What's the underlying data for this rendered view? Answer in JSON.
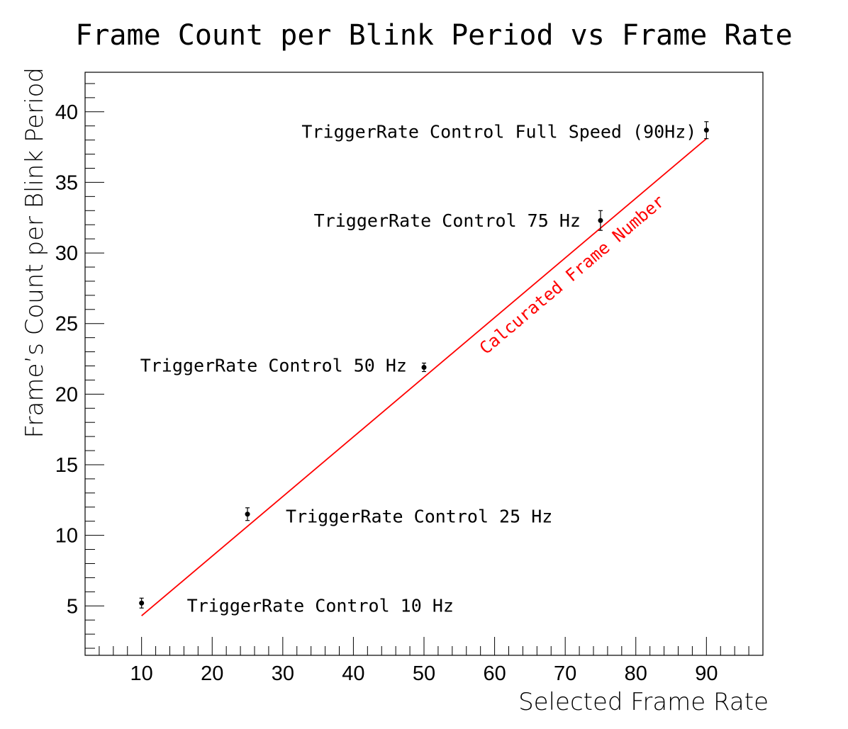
{
  "chart_data": {
    "type": "scatter",
    "title": "Frame Count per Blink Period vs Frame Rate",
    "xlabel": "Selected Frame Rate",
    "ylabel": "Frame’s Count per Blink Period",
    "xlim": [
      2,
      98
    ],
    "ylim": [
      1.5,
      42.8
    ],
    "x_ticks": [
      10,
      20,
      30,
      40,
      50,
      60,
      70,
      80,
      90
    ],
    "y_ticks": [
      5,
      10,
      15,
      20,
      25,
      30,
      35,
      40
    ],
    "grid": false,
    "points": [
      {
        "x": 10,
        "y": 5.2,
        "err": 0.35,
        "label": "TriggerRate Control 10 Hz"
      },
      {
        "x": 25,
        "y": 11.5,
        "err": 0.45,
        "label": "TriggerRate Control 25 Hz"
      },
      {
        "x": 50,
        "y": 21.9,
        "err": 0.3,
        "label": "TriggerRate Control 50 Hz"
      },
      {
        "x": 75,
        "y": 32.3,
        "err": 0.7,
        "label": "TriggerRate Control 75 Hz"
      },
      {
        "x": 90,
        "y": 38.7,
        "err": 0.6,
        "label": "TriggerRate Control Full Speed (90Hz)"
      }
    ],
    "fit_line": {
      "label": "Calcurated Frame Number",
      "x": [
        10,
        90
      ],
      "y": [
        4.3,
        38.1
      ],
      "color": "#ff0000"
    },
    "point_color": "#000000"
  }
}
